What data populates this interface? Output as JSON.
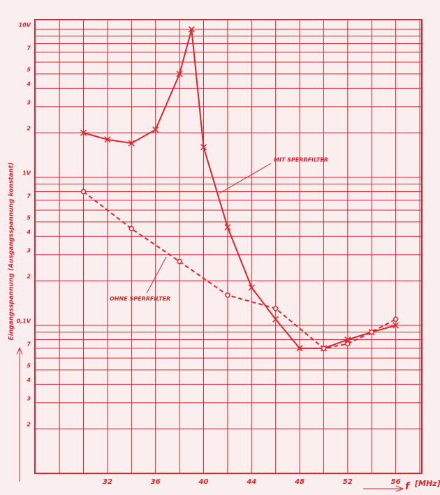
{
  "chart_data": {
    "type": "line",
    "y_label": "Eingangsspannung (Ausgangsspannung konstant)",
    "x_label": "f",
    "x_unit": "[MHz]",
    "log_y": true,
    "color": "#e0242c",
    "xlim": [
      26,
      58
    ],
    "xticks": [
      32,
      36,
      40,
      44,
      48,
      52,
      56
    ],
    "xgrid": [
      28,
      30,
      32,
      34,
      36,
      38,
      40,
      42,
      44,
      46,
      48,
      50,
      52,
      54,
      56,
      58
    ],
    "ylim": [
      0.01,
      10
    ],
    "yticks": [
      {
        "value": 10,
        "label": "10V"
      },
      7,
      5,
      4,
      3,
      2,
      {
        "value": 1,
        "label": "1V"
      },
      {
        "value": 0.7,
        "label": "7"
      },
      {
        "value": 0.5,
        "label": "5"
      },
      {
        "value": 0.4,
        "label": "4"
      },
      {
        "value": 0.3,
        "label": "3"
      },
      {
        "value": 0.2,
        "label": "2"
      },
      {
        "value": 0.1,
        "label": "0,1V"
      },
      {
        "value": 0.07,
        "label": "7"
      },
      {
        "value": 0.05,
        "label": "5"
      },
      {
        "value": 0.04,
        "label": "4"
      },
      {
        "value": 0.03,
        "label": "3"
      },
      {
        "value": 0.02,
        "label": "2"
      }
    ],
    "ygrid": [
      10,
      9,
      8,
      7,
      6,
      5,
      4,
      3,
      2,
      1,
      0.9,
      0.8,
      0.7,
      0.6,
      0.5,
      0.4,
      0.3,
      0.2,
      0.1,
      0.09,
      0.08,
      0.07,
      0.06,
      0.05,
      0.04,
      0.03,
      0.02,
      0.01
    ],
    "series": [
      {
        "name": "MIT SPERRFILTER",
        "marker": "cross",
        "dashed": false,
        "x": [
          30,
          32,
          34,
          36,
          38,
          39,
          40,
          42,
          44,
          46,
          48,
          50,
          52,
          54,
          56
        ],
        "values": [
          2.0,
          1.8,
          1.7,
          2.1,
          5,
          10,
          1.6,
          0.46,
          0.18,
          0.11,
          0.07,
          0.07,
          0.08,
          0.09,
          0.1
        ]
      },
      {
        "name": "OHNE SPERRFILTER",
        "marker": "circle",
        "dashed": true,
        "x": [
          30,
          34,
          38,
          42,
          46,
          50,
          52,
          54,
          56
        ],
        "values": [
          0.8,
          0.45,
          0.27,
          0.16,
          0.13,
          0.07,
          0.075,
          0.09,
          0.11
        ]
      }
    ]
  }
}
